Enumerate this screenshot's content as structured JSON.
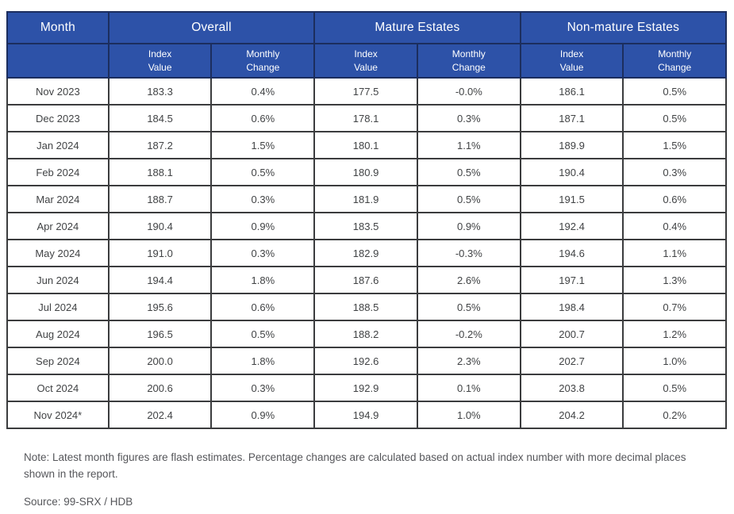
{
  "table": {
    "month_header": "Month",
    "groups": [
      "Overall",
      "Mature Estates",
      "Non-mature Estates"
    ],
    "sub_index": "Index\nValue",
    "sub_change": "Monthly\nChange",
    "rows": [
      [
        "Nov 2023",
        "183.3",
        "0.4%",
        "177.5",
        "-0.0%",
        "186.1",
        "0.5%"
      ],
      [
        "Dec 2023",
        "184.5",
        "0.6%",
        "178.1",
        "0.3%",
        "187.1",
        "0.5%"
      ],
      [
        "Jan 2024",
        "187.2",
        "1.5%",
        "180.1",
        "1.1%",
        "189.9",
        "1.5%"
      ],
      [
        "Feb 2024",
        "188.1",
        "0.5%",
        "180.9",
        "0.5%",
        "190.4",
        "0.3%"
      ],
      [
        "Mar 2024",
        "188.7",
        "0.3%",
        "181.9",
        "0.5%",
        "191.5",
        "0.6%"
      ],
      [
        "Apr 2024",
        "190.4",
        "0.9%",
        "183.5",
        "0.9%",
        "192.4",
        "0.4%"
      ],
      [
        "May 2024",
        "191.0",
        "0.3%",
        "182.9",
        "-0.3%",
        "194.6",
        "1.1%"
      ],
      [
        "Jun 2024",
        "194.4",
        "1.8%",
        "187.6",
        "2.6%",
        "197.1",
        "1.3%"
      ],
      [
        "Jul 2024",
        "195.6",
        "0.6%",
        "188.5",
        "0.5%",
        "198.4",
        "0.7%"
      ],
      [
        "Aug 2024",
        "196.5",
        "0.5%",
        "188.2",
        "-0.2%",
        "200.7",
        "1.2%"
      ],
      [
        "Sep 2024",
        "200.0",
        "1.8%",
        "192.6",
        "2.3%",
        "202.7",
        "1.0%"
      ],
      [
        "Oct 2024",
        "200.6",
        "0.3%",
        "192.9",
        "0.1%",
        "203.8",
        "0.5%"
      ],
      [
        "Nov 2024*",
        "202.4",
        "0.9%",
        "194.9",
        "1.0%",
        "204.2",
        "0.2%"
      ]
    ]
  },
  "note": "Note: Latest month figures are flash estimates. Percentage changes are calculated based on actual index number with more decimal places shown in the report.",
  "source": "Source: 99-SRX / HDB",
  "colors": {
    "header_bg": "#2D52A8",
    "header_border": "#1C2E5E",
    "body_border": "#3B3C3E",
    "body_text": "#414345",
    "note_text": "#55565A"
  }
}
